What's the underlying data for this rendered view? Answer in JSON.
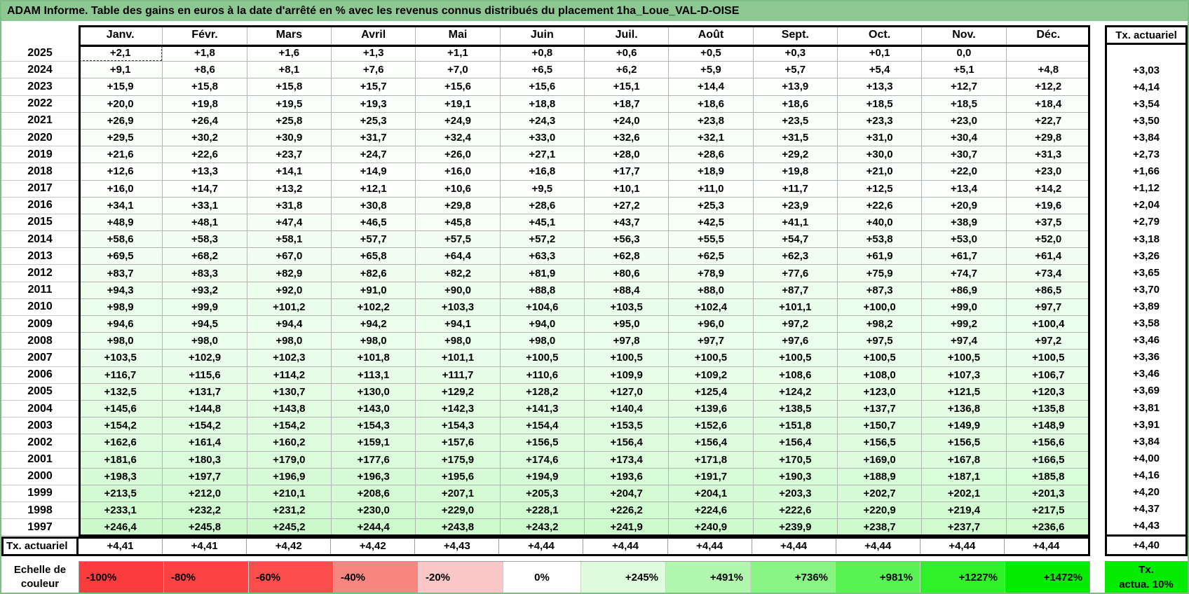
{
  "title": "ADAM Informe. Table des gains en euros à la date d'arrêté en % avec les revenus connus distribués du placement 1ha_Loue_VAL-D-OISE",
  "columns": [
    "Janv.",
    "Févr.",
    "Mars",
    "Avril",
    "Mai",
    "Juin",
    "Juil.",
    "Août",
    "Sept.",
    "Oct.",
    "Nov.",
    "Déc."
  ],
  "right_column": {
    "header": "Tx. actuariel"
  },
  "rows": [
    {
      "year": "2025",
      "values": [
        "+2,1",
        "+1,8",
        "+1,6",
        "+1,3",
        "+1,1",
        "+0,8",
        "+0,6",
        "+0,5",
        "+0,3",
        "+0,1",
        "0,0",
        ""
      ],
      "tx": ""
    },
    {
      "year": "2024",
      "values": [
        "+9,1",
        "+8,6",
        "+8,1",
        "+7,6",
        "+7,0",
        "+6,5",
        "+6,2",
        "+5,9",
        "+5,7",
        "+5,4",
        "+5,1",
        "+4,8"
      ],
      "tx": "+3,03"
    },
    {
      "year": "2023",
      "values": [
        "+15,9",
        "+15,8",
        "+15,8",
        "+15,7",
        "+15,6",
        "+15,6",
        "+15,1",
        "+14,4",
        "+13,9",
        "+13,3",
        "+12,7",
        "+12,2"
      ],
      "tx": "+4,14"
    },
    {
      "year": "2022",
      "values": [
        "+20,0",
        "+19,8",
        "+19,5",
        "+19,3",
        "+19,1",
        "+18,8",
        "+18,7",
        "+18,6",
        "+18,6",
        "+18,5",
        "+18,5",
        "+18,4"
      ],
      "tx": "+3,54"
    },
    {
      "year": "2021",
      "values": [
        "+26,9",
        "+26,4",
        "+25,8",
        "+25,3",
        "+24,9",
        "+24,3",
        "+24,0",
        "+23,8",
        "+23,5",
        "+23,3",
        "+23,0",
        "+22,7"
      ],
      "tx": "+3,50"
    },
    {
      "year": "2020",
      "values": [
        "+29,5",
        "+30,2",
        "+30,9",
        "+31,7",
        "+32,4",
        "+33,0",
        "+32,6",
        "+32,1",
        "+31,5",
        "+31,0",
        "+30,4",
        "+29,8"
      ],
      "tx": "+3,84"
    },
    {
      "year": "2019",
      "values": [
        "+21,6",
        "+22,6",
        "+23,7",
        "+24,7",
        "+26,0",
        "+27,1",
        "+28,0",
        "+28,6",
        "+29,2",
        "+30,0",
        "+30,7",
        "+31,3"
      ],
      "tx": "+2,73"
    },
    {
      "year": "2018",
      "values": [
        "+12,6",
        "+13,3",
        "+14,1",
        "+14,9",
        "+16,0",
        "+16,8",
        "+17,7",
        "+18,9",
        "+19,8",
        "+21,0",
        "+22,0",
        "+23,0"
      ],
      "tx": "+1,66"
    },
    {
      "year": "2017",
      "values": [
        "+16,0",
        "+14,7",
        "+13,2",
        "+12,1",
        "+10,6",
        "+9,5",
        "+10,1",
        "+11,0",
        "+11,7",
        "+12,5",
        "+13,4",
        "+14,2"
      ],
      "tx": "+1,12"
    },
    {
      "year": "2016",
      "values": [
        "+34,1",
        "+33,1",
        "+31,8",
        "+30,8",
        "+29,8",
        "+28,6",
        "+27,2",
        "+25,3",
        "+23,9",
        "+22,6",
        "+20,9",
        "+19,6"
      ],
      "tx": "+2,04"
    },
    {
      "year": "2015",
      "values": [
        "+48,9",
        "+48,1",
        "+47,4",
        "+46,5",
        "+45,8",
        "+45,1",
        "+43,7",
        "+42,5",
        "+41,1",
        "+40,0",
        "+38,9",
        "+37,5"
      ],
      "tx": "+2,79"
    },
    {
      "year": "2014",
      "values": [
        "+58,6",
        "+58,3",
        "+58,1",
        "+57,7",
        "+57,5",
        "+57,2",
        "+56,3",
        "+55,5",
        "+54,7",
        "+53,8",
        "+53,0",
        "+52,0"
      ],
      "tx": "+3,18"
    },
    {
      "year": "2013",
      "values": [
        "+69,5",
        "+68,2",
        "+67,0",
        "+65,8",
        "+64,4",
        "+63,3",
        "+62,8",
        "+62,5",
        "+62,3",
        "+61,9",
        "+61,7",
        "+61,4"
      ],
      "tx": "+3,26"
    },
    {
      "year": "2012",
      "values": [
        "+83,7",
        "+83,3",
        "+82,9",
        "+82,6",
        "+82,2",
        "+81,9",
        "+80,6",
        "+78,9",
        "+77,6",
        "+75,9",
        "+74,7",
        "+73,4"
      ],
      "tx": "+3,65"
    },
    {
      "year": "2011",
      "values": [
        "+94,3",
        "+93,2",
        "+92,0",
        "+91,0",
        "+90,0",
        "+88,8",
        "+88,4",
        "+88,0",
        "+87,7",
        "+87,3",
        "+86,9",
        "+86,5"
      ],
      "tx": "+3,70"
    },
    {
      "year": "2010",
      "values": [
        "+98,9",
        "+99,9",
        "+101,2",
        "+102,2",
        "+103,3",
        "+104,6",
        "+103,5",
        "+102,4",
        "+101,1",
        "+100,0",
        "+99,0",
        "+97,7"
      ],
      "tx": "+3,89"
    },
    {
      "year": "2009",
      "values": [
        "+94,6",
        "+94,5",
        "+94,4",
        "+94,2",
        "+94,1",
        "+94,0",
        "+95,0",
        "+96,0",
        "+97,2",
        "+98,2",
        "+99,2",
        "+100,4"
      ],
      "tx": "+3,58"
    },
    {
      "year": "2008",
      "values": [
        "+98,0",
        "+98,0",
        "+98,0",
        "+98,0",
        "+98,0",
        "+98,0",
        "+97,8",
        "+97,7",
        "+97,6",
        "+97,5",
        "+97,4",
        "+97,2"
      ],
      "tx": "+3,46"
    },
    {
      "year": "2007",
      "values": [
        "+103,5",
        "+102,9",
        "+102,3",
        "+101,8",
        "+101,1",
        "+100,5",
        "+100,5",
        "+100,5",
        "+100,5",
        "+100,5",
        "+100,5",
        "+100,5"
      ],
      "tx": "+3,36"
    },
    {
      "year": "2006",
      "values": [
        "+116,7",
        "+115,6",
        "+114,2",
        "+113,1",
        "+111,7",
        "+110,6",
        "+109,9",
        "+109,2",
        "+108,6",
        "+108,0",
        "+107,3",
        "+106,7"
      ],
      "tx": "+3,46"
    },
    {
      "year": "2005",
      "values": [
        "+132,5",
        "+131,7",
        "+130,7",
        "+130,0",
        "+129,2",
        "+128,2",
        "+127,0",
        "+125,4",
        "+124,2",
        "+123,0",
        "+121,5",
        "+120,3"
      ],
      "tx": "+3,69"
    },
    {
      "year": "2004",
      "values": [
        "+145,6",
        "+144,8",
        "+143,8",
        "+143,0",
        "+142,3",
        "+141,3",
        "+140,4",
        "+139,6",
        "+138,5",
        "+137,7",
        "+136,8",
        "+135,8"
      ],
      "tx": "+3,81"
    },
    {
      "year": "2003",
      "values": [
        "+154,2",
        "+154,2",
        "+154,2",
        "+154,3",
        "+154,3",
        "+154,4",
        "+153,5",
        "+152,6",
        "+151,8",
        "+150,7",
        "+149,9",
        "+148,9"
      ],
      "tx": "+3,91"
    },
    {
      "year": "2002",
      "values": [
        "+162,6",
        "+161,4",
        "+160,2",
        "+159,1",
        "+157,6",
        "+156,5",
        "+156,4",
        "+156,4",
        "+156,4",
        "+156,5",
        "+156,5",
        "+156,6"
      ],
      "tx": "+3,84"
    },
    {
      "year": "2001",
      "values": [
        "+181,6",
        "+180,3",
        "+179,0",
        "+177,6",
        "+175,9",
        "+174,6",
        "+173,4",
        "+171,8",
        "+170,5",
        "+169,0",
        "+167,8",
        "+166,5"
      ],
      "tx": "+4,00"
    },
    {
      "year": "2000",
      "values": [
        "+198,3",
        "+197,7",
        "+196,9",
        "+196,3",
        "+195,6",
        "+194,9",
        "+193,6",
        "+191,7",
        "+190,3",
        "+188,9",
        "+187,1",
        "+185,8"
      ],
      "tx": "+4,16"
    },
    {
      "year": "1999",
      "values": [
        "+213,5",
        "+212,0",
        "+210,1",
        "+208,6",
        "+207,1",
        "+205,3",
        "+204,7",
        "+204,1",
        "+203,3",
        "+202,7",
        "+202,1",
        "+201,3"
      ],
      "tx": "+4,20"
    },
    {
      "year": "1998",
      "values": [
        "+233,1",
        "+232,2",
        "+231,2",
        "+230,0",
        "+229,0",
        "+228,1",
        "+226,2",
        "+224,6",
        "+222,6",
        "+220,9",
        "+219,4",
        "+217,5"
      ],
      "tx": "+4,37"
    },
    {
      "year": "1997",
      "values": [
        "+246,4",
        "+245,8",
        "+245,2",
        "+244,4",
        "+243,8",
        "+243,2",
        "+241,9",
        "+240,9",
        "+239,9",
        "+238,7",
        "+237,7",
        "+236,6"
      ],
      "tx": "+4,43"
    }
  ],
  "tx_row": {
    "label": "Tx. actuariel",
    "values": [
      "+4,41",
      "+4,41",
      "+4,42",
      "+4,42",
      "+4,43",
      "+4,44",
      "+4,44",
      "+4,44",
      "+4,44",
      "+4,44",
      "+4,44",
      "+4,44"
    ],
    "tx": "+4,40"
  },
  "legend": {
    "label_line1": "Echelle de",
    "label_line2": "couleur",
    "items": [
      {
        "label": "-100%",
        "color": "#FB3B3D",
        "align": "left"
      },
      {
        "label": "-80%",
        "color": "#FB4343",
        "align": "left"
      },
      {
        "label": "-60%",
        "color": "#FA4D4C",
        "align": "left"
      },
      {
        "label": "-40%",
        "color": "#F6867F",
        "align": "left"
      },
      {
        "label": "-20%",
        "color": "#FBC6C7",
        "align": "left"
      },
      {
        "label": "0%",
        "color": "#FFFFFF",
        "align": "center"
      },
      {
        "label": "+245%",
        "color": "#DEFBDE",
        "align": "right"
      },
      {
        "label": "+491%",
        "color": "#B2F7AE",
        "align": "right"
      },
      {
        "label": "+736%",
        "color": "#86F581",
        "align": "right"
      },
      {
        "label": "+981%",
        "color": "#58F252",
        "align": "right"
      },
      {
        "label": "+1227%",
        "color": "#2EF227",
        "align": "right"
      },
      {
        "label": "+1472%",
        "color": "#06EC00",
        "align": "right"
      }
    ],
    "right_box": {
      "line1": "Tx.",
      "line2": "actua. 10%",
      "color": "#06EC00"
    }
  },
  "colors": {
    "title_bg": "#8DC893",
    "frame": "#7FBE85",
    "grid_line": "#B4B4B4",
    "table_border": "#000000",
    "gain_scale_zero": "#FFFFFF",
    "gain_scale_green": "#00E800"
  },
  "selection": {
    "row": "2025",
    "column": "Janv."
  }
}
